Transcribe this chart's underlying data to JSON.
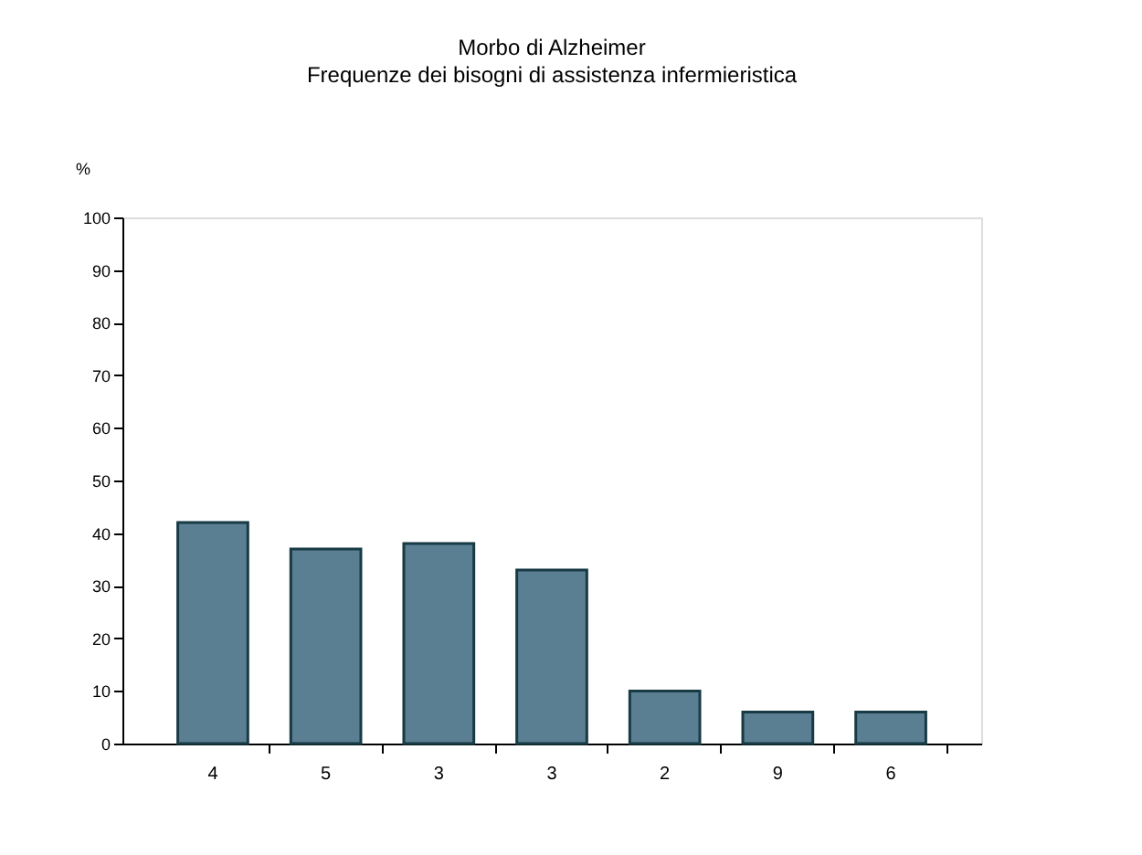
{
  "chart_data": {
    "type": "bar",
    "title": "Morbo di Alzheimer",
    "subtitle": "Frequenze dei bisogni di assistenza infermieristica",
    "ylabel": "%",
    "categories": [
      "4",
      "5",
      "3",
      "3",
      "2",
      "9",
      "6"
    ],
    "values": [
      42,
      37,
      38,
      33,
      10,
      6,
      6
    ],
    "color": "#5b7f92",
    "ylim": [
      0,
      100
    ],
    "yticks": [
      0,
      10,
      20,
      30,
      40,
      50,
      60,
      70,
      80,
      90,
      100
    ],
    "grid": false
  }
}
